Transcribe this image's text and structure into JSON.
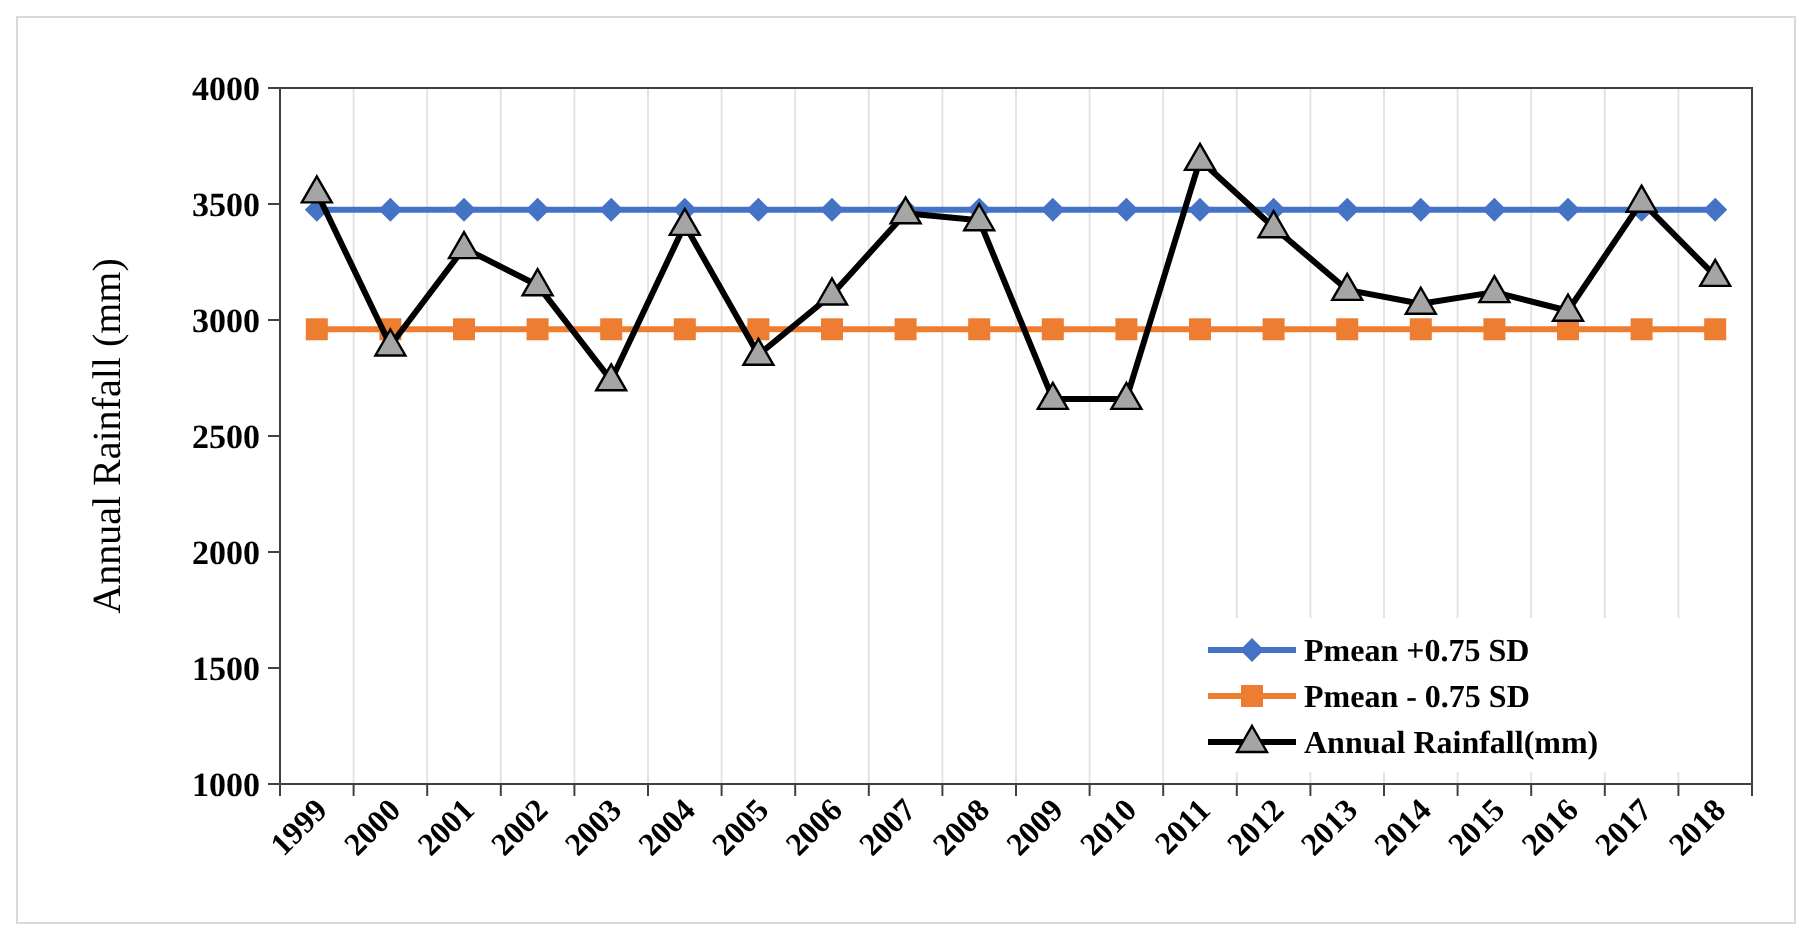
{
  "chart_data": {
    "type": "line",
    "ylabel": "Annual Rainfall (mm)",
    "categories": [
      "1999",
      "2000",
      "2001",
      "2002",
      "2003",
      "2004",
      "2005",
      "2006",
      "2007",
      "2008",
      "2009",
      "2010",
      "2011",
      "2012",
      "2013",
      "2014",
      "2015",
      "2016",
      "2017",
      "2018"
    ],
    "series": [
      {
        "name": "Pmean +0.75 SD",
        "color": "#4472c4",
        "marker": "diamond",
        "values": [
          3475,
          3475,
          3475,
          3475,
          3475,
          3475,
          3475,
          3475,
          3475,
          3475,
          3475,
          3475,
          3475,
          3475,
          3475,
          3475,
          3475,
          3475,
          3475,
          3475
        ]
      },
      {
        "name": "Pmean - 0.75 SD",
        "color": "#ed7d31",
        "marker": "square",
        "values": [
          2960,
          2960,
          2960,
          2960,
          2960,
          2960,
          2960,
          2960,
          2960,
          2960,
          2960,
          2960,
          2960,
          2960,
          2960,
          2960,
          2960,
          2960,
          2960,
          2960
        ]
      },
      {
        "name": "Annual Rainfall(mm)",
        "color": "#000000",
        "marker": "triangle",
        "values": [
          3550,
          2890,
          3310,
          3150,
          2740,
          3410,
          2850,
          3110,
          3460,
          3430,
          2660,
          2660,
          3690,
          3400,
          3130,
          3070,
          3120,
          3040,
          3510,
          3190
        ]
      }
    ],
    "ylim": [
      1000,
      4000
    ],
    "yticks": [
      1000,
      1500,
      2000,
      2500,
      3000,
      3500,
      4000
    ],
    "grid": "x",
    "legend": "bottom right",
    "line_style": "solid"
  }
}
